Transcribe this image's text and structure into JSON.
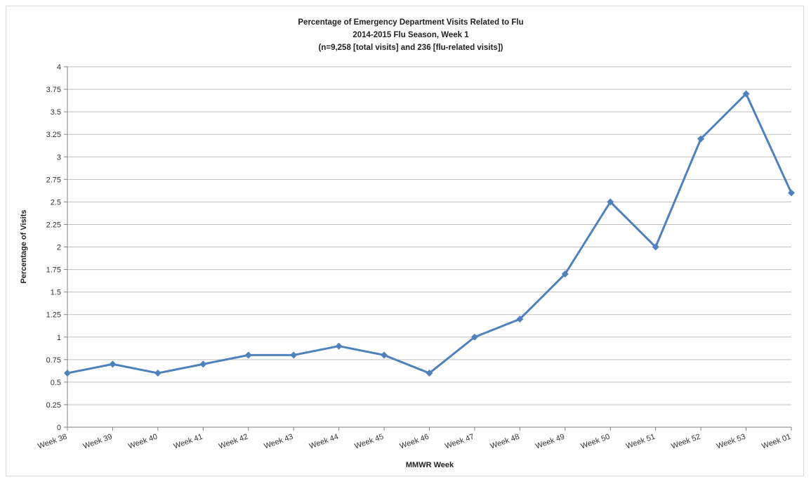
{
  "chart_data": {
    "type": "line",
    "title_lines": [
      "Percentage of Emergency Department Visits Related to Flu",
      "2014-2015  Flu Season, Week 1",
      "(n=9,258  [total visits] and 236 [flu-related visits])"
    ],
    "xlabel": "MMWR  Week",
    "ylabel": "Percentage of Visits",
    "ylim": [
      0,
      4
    ],
    "ytick_step": 0.25,
    "yticks": [
      "0",
      "0.25",
      "0.5",
      "0.75",
      "1",
      "1.25",
      "1.5",
      "1.75",
      "2",
      "2.25",
      "2.5",
      "2.75",
      "3",
      "3.25",
      "3.5",
      "3.75",
      "4"
    ],
    "grid": true,
    "categories": [
      "Week 38",
      "Week 39",
      "Week 40",
      "Week 41",
      "Week 42",
      "Week 43",
      "Week 44",
      "Week 45",
      "Week 46",
      "Week 47",
      "Week 48",
      "Week 49",
      "Week 50",
      "Week 51",
      "Week 52",
      "Week 53",
      "Week 01"
    ],
    "series": [
      {
        "values": [
          0.6,
          0.7,
          0.6,
          0.7,
          0.8,
          0.8,
          0.9,
          0.8,
          0.6,
          1.0,
          1.2,
          1.7,
          2.5,
          2.0,
          3.2,
          3.7,
          2.6
        ],
        "color": "#4f81bd"
      }
    ]
  }
}
